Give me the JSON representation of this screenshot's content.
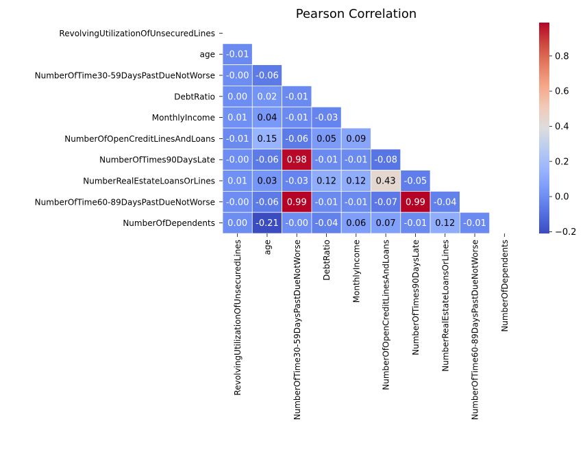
{
  "chart_data": {
    "type": "heatmap",
    "title": "Pearson Correlation",
    "variables": [
      "RevolvingUtilizationOfUnsecuredLines",
      "age",
      "NumberOfTime30-59DaysPastDueNotWorse",
      "DebtRatio",
      "MonthlyIncome",
      "NumberOfOpenCreditLinesAndLoans",
      "NumberOfTimes90DaysLate",
      "NumberRealEstateLoansOrLines",
      "NumberOfTime60-89DaysPastDueNotWorse",
      "NumberOfDependents"
    ],
    "mask": "upper-triangle-including-diagonal",
    "matrix": [
      [],
      [
        -0.01
      ],
      [
        -0.0,
        -0.06
      ],
      [
        0.0,
        0.02,
        -0.01
      ],
      [
        0.01,
        0.04,
        -0.01,
        -0.03
      ],
      [
        -0.01,
        0.15,
        -0.06,
        0.05,
        0.09
      ],
      [
        -0.0,
        -0.06,
        0.98,
        -0.01,
        -0.01,
        -0.08
      ],
      [
        0.01,
        0.03,
        -0.03,
        0.12,
        0.12,
        0.43,
        -0.05
      ],
      [
        -0.0,
        -0.06,
        0.99,
        -0.01,
        -0.01,
        -0.07,
        0.99,
        -0.04
      ],
      [
        0.0,
        -0.21,
        -0.0,
        -0.04,
        0.06,
        0.07,
        -0.01,
        0.12,
        -0.01
      ]
    ],
    "annotation_format": "0.00",
    "colormap": "coolwarm",
    "vmin": -0.21,
    "vmax": 0.99,
    "colorbar_ticks": [
      -0.2,
      0.0,
      0.2,
      0.4,
      0.6,
      0.8
    ],
    "colorbar_tick_labels": [
      "−0.2",
      "0.0",
      "0.2",
      "0.4",
      "0.6",
      "0.8"
    ],
    "linecolor": "#ffffff"
  }
}
